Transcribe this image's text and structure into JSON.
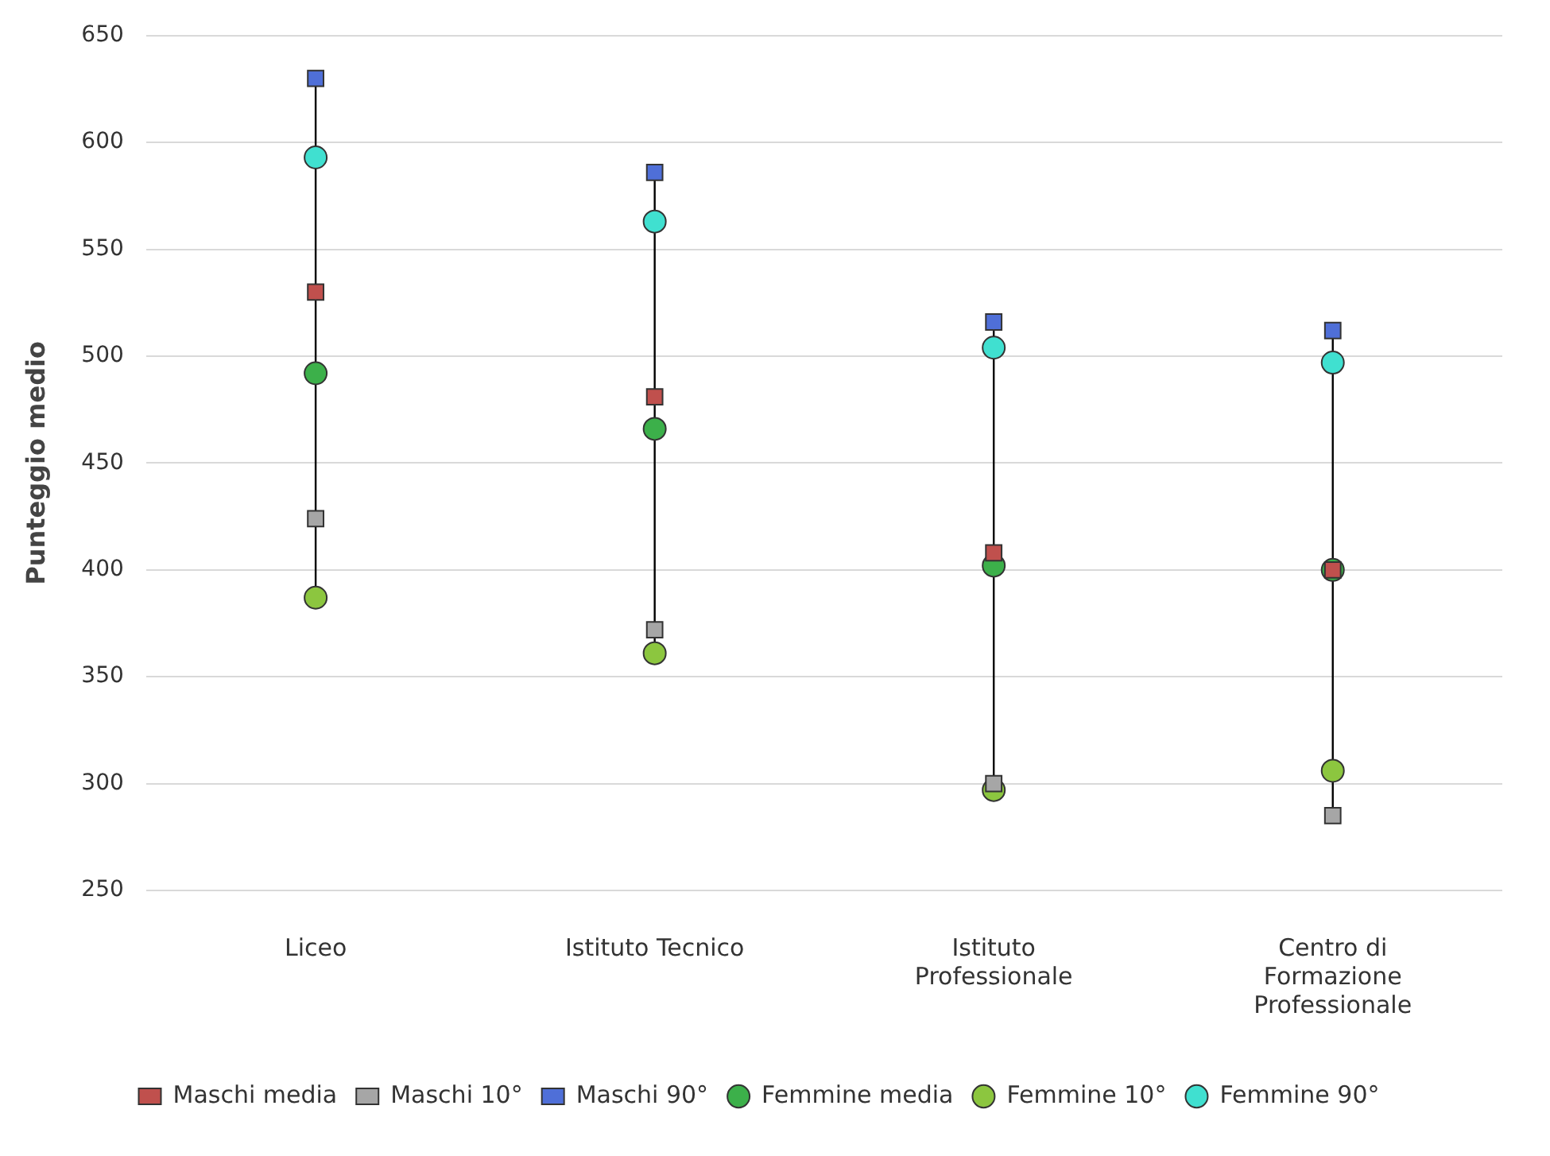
{
  "chart_data": {
    "type": "scatter",
    "ylabel": "Punteggio medio",
    "categories": [
      "Liceo",
      "Istituto Tecnico",
      "Istituto Professionale",
      "Centro di Formazione Professionale"
    ],
    "ylim": [
      250,
      650
    ],
    "yticks": [
      250,
      300,
      350,
      400,
      450,
      500,
      550,
      600,
      650
    ],
    "grid": "y",
    "legend": "bottom",
    "series": [
      {
        "name": "Maschi media",
        "color": "#c0504d",
        "marker": "square",
        "values": [
          530,
          481,
          408,
          400
        ]
      },
      {
        "name": "Maschi 10°",
        "color": "#a6a6a6",
        "marker": "square",
        "values": [
          424,
          372,
          300,
          285
        ]
      },
      {
        "name": "Maschi 90°",
        "color": "#4f6fd8",
        "marker": "square",
        "values": [
          630,
          586,
          516,
          512
        ]
      },
      {
        "name": "Femmine media",
        "color": "#3cb04a",
        "marker": "circle",
        "values": [
          492,
          466,
          402,
          400
        ]
      },
      {
        "name": "Femmine 10°",
        "color": "#8cc63f",
        "marker": "circle",
        "values": [
          387,
          361,
          297,
          306
        ]
      },
      {
        "name": "Femmine 90°",
        "color": "#40e0d0",
        "marker": "circle",
        "values": [
          593,
          563,
          504,
          497
        ]
      }
    ]
  }
}
